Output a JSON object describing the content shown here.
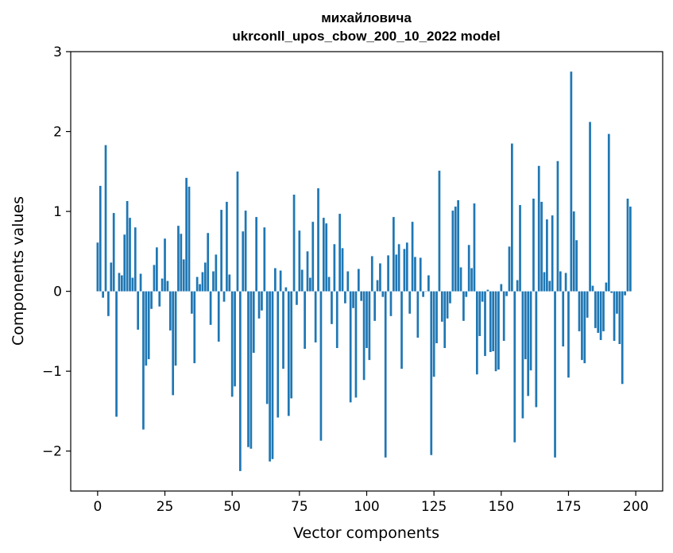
{
  "chart_data": {
    "type": "bar",
    "title": [
      "михайловича",
      "ukrconll_upos_cbow_200_10_2022 model"
    ],
    "xlabel": "Vector components",
    "ylabel": "Components values",
    "xlim": [
      -10,
      210
    ],
    "ylim": [
      -2.5,
      3.0
    ],
    "x_ticks": [
      0,
      25,
      50,
      75,
      100,
      125,
      150,
      175,
      200
    ],
    "x_tick_labels": [
      "0",
      "25",
      "50",
      "75",
      "100",
      "125",
      "150",
      "175",
      "200"
    ],
    "y_ticks": [
      -2,
      -1,
      0,
      1,
      2,
      3
    ],
    "y_tick_labels": [
      "−2",
      "−1",
      "0",
      "1",
      "2",
      "3"
    ],
    "grid": false,
    "bar_color": "#1f77b4",
    "values": [
      0.61,
      1.32,
      -0.08,
      1.83,
      -0.31,
      0.36,
      0.98,
      -1.57,
      0.23,
      0.2,
      0.71,
      1.13,
      0.92,
      0.17,
      0.8,
      -0.48,
      0.22,
      -1.73,
      -0.93,
      -0.85,
      -0.22,
      0.33,
      0.55,
      -0.19,
      0.16,
      0.66,
      0.13,
      -0.49,
      -1.3,
      -0.93,
      0.82,
      0.72,
      0.4,
      1.42,
      1.31,
      -0.28,
      -0.9,
      0.18,
      0.09,
      0.24,
      0.36,
      0.73,
      -0.42,
      0.25,
      0.46,
      -0.63,
      1.02,
      -0.13,
      1.12,
      0.21,
      -1.32,
      -1.19,
      1.5,
      -2.25,
      0.75,
      1.01,
      -1.95,
      -1.97,
      -0.77,
      0.93,
      -0.34,
      -0.24,
      0.8,
      -1.41,
      -2.13,
      -2.1,
      0.29,
      -1.58,
      0.26,
      -0.97,
      0.05,
      -1.56,
      -1.34,
      1.21,
      -0.17,
      0.76,
      0.27,
      -0.72,
      0.5,
      0.17,
      0.87,
      -0.64,
      1.29,
      -1.87,
      0.92,
      0.85,
      0.18,
      -0.41,
      0.59,
      -0.71,
      0.97,
      0.54,
      -0.15,
      0.25,
      -1.39,
      -0.21,
      -1.33,
      0.28,
      -0.12,
      -1.11,
      -0.71,
      -0.86,
      0.44,
      -0.37,
      0.14,
      0.35,
      -0.07,
      -2.08,
      0.45,
      -0.31,
      0.93,
      0.46,
      0.59,
      -0.97,
      0.53,
      0.61,
      -0.28,
      0.87,
      0.43,
      -0.58,
      0.42,
      -0.07,
      0.0,
      0.2,
      -2.05,
      -1.07,
      -0.65,
      1.51,
      -0.38,
      -0.71,
      -0.34,
      -0.15,
      1.01,
      1.06,
      1.14,
      0.3,
      -0.37,
      -0.07,
      0.58,
      0.29,
      1.1,
      -1.04,
      -0.56,
      -0.13,
      -0.81,
      0.02,
      -0.76,
      -0.75,
      -1.0,
      -0.98,
      0.09,
      -0.62,
      -0.06,
      0.56,
      1.85,
      -1.89,
      0.14,
      1.08,
      -1.59,
      -0.85,
      -1.31,
      -0.99,
      1.16,
      -1.45,
      1.57,
      1.12,
      0.24,
      0.9,
      0.13,
      0.95,
      -2.08,
      1.63,
      0.25,
      -0.69,
      0.23,
      -1.08,
      2.75,
      1.0,
      0.64,
      -0.5,
      -0.86,
      -0.9,
      -0.33,
      2.12,
      0.07,
      -0.46,
      -0.52,
      -0.61,
      -0.5,
      0.11,
      1.97,
      -0.02,
      -0.62,
      -0.28,
      -0.66,
      -1.16,
      -0.05,
      1.16,
      1.06
    ]
  }
}
